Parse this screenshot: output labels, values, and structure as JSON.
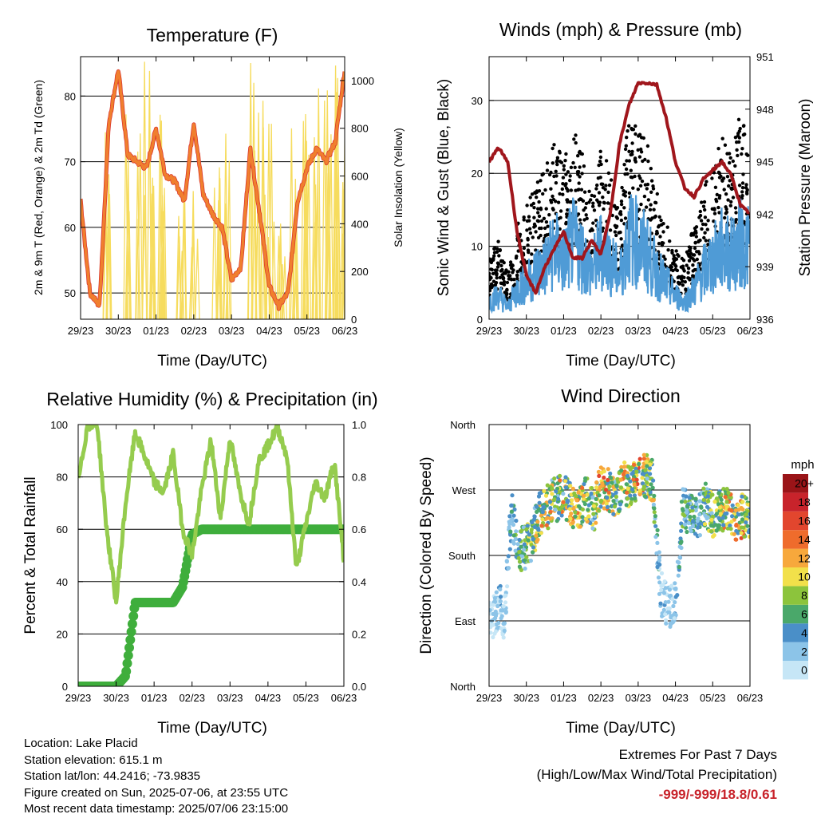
{
  "x_ticks": [
    "29/23",
    "30/23",
    "01/23",
    "02/23",
    "03/23",
    "04/23",
    "05/23",
    "06/23"
  ],
  "x_label": "Time (Day/UTC)",
  "colors": {
    "red": "#d9332b",
    "orange": "#f07f2e",
    "green": "#7dbb3c",
    "yellow": "#f6dc5e",
    "blue": "#4f9bd6",
    "black": "#000000",
    "maroon": "#a0161c",
    "rh": "#95cc4e",
    "precip": "#3fae3c",
    "extremes": "#c8232b"
  },
  "panels": {
    "temperature": {
      "title": "Temperature (F)",
      "ylabel": "2m & 9m T (Red, Orange) & 2m Td (Green)",
      "ylabel2": "Solar Insolation (Yellow)",
      "yticks": [
        "50",
        "60",
        "70",
        "80"
      ],
      "y2ticks": [
        "0",
        "200",
        "400",
        "600",
        "800",
        "1000"
      ]
    },
    "winds": {
      "title": "Winds (mph) & Pressure (mb)",
      "ylabel": "Sonic Wind & Gust (Blue, Black)",
      "ylabel2": "Station Pressure (Maroon)",
      "yticks": [
        "0",
        "10",
        "20",
        "30"
      ],
      "y2ticks": [
        "936",
        "939",
        "942",
        "945",
        "948",
        "951"
      ]
    },
    "humidity": {
      "title": "Relative Humidity (%) & Precipitation (in)",
      "ylabel": "Percent & Total Rainfall",
      "yticks": [
        "0",
        "20",
        "40",
        "60",
        "80",
        "100"
      ],
      "y2ticks": [
        "0.0",
        "0.2",
        "0.4",
        "0.6",
        "0.8",
        "1.0"
      ]
    },
    "direction": {
      "title": "Wind Direction",
      "ylabel": "Direction (Colored By Speed)",
      "yticks": [
        "North",
        "East",
        "South",
        "West",
        "North"
      ],
      "legend_title": "mph",
      "legend_labels": [
        "0",
        "2",
        "4",
        "6",
        "8",
        "10",
        "12",
        "14",
        "16",
        "18",
        "20+"
      ],
      "legend_colors": [
        "#c6e6f6",
        "#8cc4e8",
        "#4a8fc8",
        "#4aa86a",
        "#8cc43c",
        "#f2e04a",
        "#f7a83c",
        "#ef6c2c",
        "#e2462e",
        "#c8232b",
        "#9a1418"
      ]
    }
  },
  "info": {
    "location": "Location: Lake Placid",
    "elevation": "Station elevation: 615.1 m",
    "latlon": "Station lat/lon: 44.2416; -73.9835",
    "created": "Figure created on Sun, 2025-07-06, at 23:55 UTC",
    "recent": "Most recent data timestamp: 2025/07/06 23:15:00"
  },
  "extremes": {
    "title": "Extremes For Past 7 Days",
    "subtitle": "(High/Low/Max Wind/Total Precipitation)",
    "values": "-999/-999/18.8/0.61"
  },
  "chart_data": [
    {
      "type": "line",
      "title": "Temperature (F)",
      "xlabel": "Time (Day/UTC)",
      "ylabel": "2m & 9m T (Red, Orange) & 2m Td (Green)",
      "ylabel2": "Solar Insolation (Yellow)",
      "x": [
        0,
        0.25,
        0.5,
        0.75,
        1.0,
        1.25,
        1.5,
        1.75,
        2.0,
        2.25,
        2.5,
        2.75,
        3.0,
        3.25,
        3.5,
        3.75,
        4.0,
        4.25,
        4.5,
        4.75,
        5.0,
        5.25,
        5.5,
        5.75,
        6.0,
        6.25,
        6.5,
        6.75,
        7.0
      ],
      "ylim": [
        46,
        86
      ],
      "y2lim": [
        0,
        1100
      ],
      "series": [
        {
          "name": "Temperature",
          "color": "orange",
          "values": [
            64,
            50,
            48,
            76,
            84,
            71,
            70,
            69,
            75,
            68,
            67,
            64,
            76,
            65,
            62,
            60,
            52,
            54,
            72,
            62,
            51,
            48,
            50,
            64,
            69,
            72,
            70,
            73,
            84
          ]
        },
        {
          "name": "Solar Insolation",
          "color": "yellow",
          "axis": 2,
          "peaks": [
            0.75,
            1.25,
            1.6,
            1.9,
            2.2,
            2.7,
            3.0,
            3.6,
            3.9,
            4.6,
            4.8,
            5.05,
            5.35,
            5.7,
            6.0,
            6.3,
            6.55,
            6.75,
            6.95
          ],
          "peak_values": [
            850,
            1000,
            1100,
            1050,
            900,
            700,
            600,
            650,
            800,
            1080,
            1000,
            920,
            600,
            950,
            900,
            1030,
            980,
            1070,
            900
          ]
        }
      ]
    },
    {
      "type": "line",
      "title": "Winds (mph) & Pressure (mb)",
      "xlabel": "Time (Day/UTC)",
      "ylabel": "Sonic Wind & Gust (Blue, Black)",
      "ylabel2": "Station Pressure (Maroon)",
      "x": [
        0,
        0.25,
        0.5,
        0.75,
        1.0,
        1.25,
        1.5,
        1.75,
        2.0,
        2.25,
        2.5,
        2.75,
        3.0,
        3.25,
        3.5,
        3.75,
        4.0,
        4.25,
        4.5,
        4.75,
        5.0,
        5.25,
        5.5,
        5.75,
        6.0,
        6.25,
        6.5,
        6.75,
        7.0
      ],
      "ylim": [
        0,
        36
      ],
      "y2lim": [
        936,
        951
      ],
      "series": [
        {
          "name": "Sonic Wind",
          "color": "blue",
          "values": [
            3,
            4,
            2,
            5,
            6,
            8,
            9,
            12,
            10,
            13,
            11,
            8,
            12,
            10,
            7,
            14,
            13,
            11,
            8,
            6,
            4,
            3,
            5,
            8,
            10,
            12,
            11,
            13,
            12
          ]
        },
        {
          "name": "Gust",
          "color": "black",
          "values": [
            7,
            9,
            5,
            11,
            13,
            16,
            17,
            21,
            18,
            22,
            19,
            14,
            20,
            17,
            12,
            24,
            22,
            20,
            15,
            11,
            8,
            7,
            11,
            15,
            18,
            21,
            19,
            24,
            20
          ]
        },
        {
          "name": "Station Pressure",
          "color": "maroon",
          "axis": 2,
          "values": [
            945,
            945.8,
            945,
            941,
            938.5,
            937.5,
            939,
            940,
            941,
            939.5,
            939.5,
            940.5,
            939.7,
            942,
            946,
            948.2,
            949.5,
            949.5,
            949.4,
            947.5,
            945,
            943.5,
            943,
            944,
            944.5,
            945,
            944.2,
            942.5,
            942
          ]
        }
      ]
    },
    {
      "type": "line",
      "title": "Relative Humidity (%) & Precipitation (in)",
      "xlabel": "Time (Day/UTC)",
      "ylabel": "Percent & Total Rainfall",
      "x": [
        0,
        0.25,
        0.5,
        0.75,
        1.0,
        1.25,
        1.5,
        1.75,
        2.0,
        2.25,
        2.5,
        2.75,
        3.0,
        3.25,
        3.5,
        3.75,
        4.0,
        4.25,
        4.5,
        4.75,
        5.0,
        5.25,
        5.5,
        5.75,
        6.0,
        6.25,
        6.5,
        6.75,
        7.0
      ],
      "ylim": [
        0,
        100
      ],
      "y2lim": [
        0,
        1.0
      ],
      "series": [
        {
          "name": "Relative Humidity",
          "color": "rh",
          "values": [
            78,
            100,
            100,
            60,
            32,
            70,
            97,
            88,
            78,
            74,
            89,
            60,
            50,
            75,
            94,
            64,
            95,
            75,
            62,
            86,
            92,
            99,
            88,
            45,
            62,
            78,
            72,
            86,
            48
          ]
        },
        {
          "name": "Total Precipitation",
          "color": "precip",
          "axis": 2,
          "values": [
            0.0,
            0.0,
            0.0,
            0.0,
            0.0,
            0.04,
            0.32,
            0.32,
            0.32,
            0.32,
            0.32,
            0.38,
            0.58,
            0.6,
            0.6,
            0.6,
            0.6,
            0.6,
            0.6,
            0.6,
            0.6,
            0.6,
            0.6,
            0.6,
            0.6,
            0.6,
            0.6,
            0.6,
            0.6
          ]
        }
      ]
    },
    {
      "type": "scatter",
      "title": "Wind Direction",
      "xlabel": "Time (Day/UTC)",
      "ylabel": "Direction (Colored By Speed)",
      "xlim": [
        0,
        7
      ],
      "ylim": [
        0,
        360
      ],
      "x": [
        0.1,
        0.2,
        0.3,
        0.4,
        0.6,
        0.8,
        0.9,
        1.0,
        1.1,
        1.2,
        1.3,
        1.5,
        1.6,
        1.7,
        1.8,
        2.0,
        2.2,
        2.4,
        2.6,
        2.8,
        3.0,
        3.2,
        3.4,
        3.6,
        3.8,
        4.0,
        4.2,
        4.4,
        4.6,
        4.8,
        5.0,
        5.2,
        5.4,
        5.6,
        5.8,
        6.0,
        6.2,
        6.4,
        6.6,
        6.8,
        6.9
      ],
      "y": [
        95,
        100,
        110,
        90,
        240,
        180,
        195,
        190,
        200,
        210,
        230,
        250,
        245,
        260,
        255,
        265,
        250,
        245,
        260,
        240,
        275,
        270,
        260,
        280,
        275,
        285,
        290,
        280,
        130,
        110,
        115,
        245,
        240,
        230,
        250,
        235,
        240,
        245,
        225,
        235,
        230
      ],
      "speed": [
        2,
        3,
        4,
        2,
        6,
        8,
        7,
        9,
        10,
        9,
        12,
        12,
        13,
        12,
        11,
        13,
        12,
        14,
        11,
        10,
        15,
        14,
        10,
        13,
        12,
        16,
        12,
        11,
        4,
        3,
        4,
        7,
        8,
        6,
        9,
        10,
        12,
        14,
        13,
        16,
        11
      ]
    }
  ]
}
